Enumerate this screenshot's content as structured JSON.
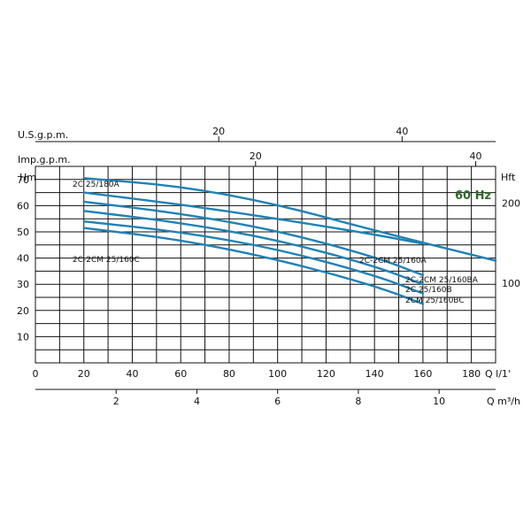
{
  "chart_data": {
    "type": "line",
    "frequency_label": "60 Hz",
    "primary_x_label": "Q  l/1'",
    "primary_y_label": "Hm",
    "secondary_y_label": "Hft",
    "xlim": [
      0,
      190
    ],
    "ylim": [
      0,
      75
    ],
    "x_ticks": [
      "0",
      "20",
      "40",
      "60",
      "80",
      "100",
      "120",
      "140",
      "160",
      "180"
    ],
    "y_ticks": [
      "10",
      "20",
      "30",
      "40",
      "50",
      "60",
      "70"
    ],
    "secondary_y_ticks": [
      "100",
      "200"
    ],
    "usgpm": {
      "label": "U.S.g.p.m.",
      "ticks": [
        "20",
        "40"
      ]
    },
    "impgpm": {
      "label": "Imp.g.p.m.",
      "ticks": [
        "20",
        "40"
      ]
    },
    "m3h": {
      "label": "Q  m³/h",
      "ticks": [
        "2",
        "4",
        "6",
        "8",
        "10"
      ]
    },
    "colors": {
      "curve": "#1f82b5",
      "frequency": "#2f6b2a",
      "grid": "#111111"
    },
    "series": [
      {
        "name": "2C 25/180A",
        "x": [
          20,
          60,
          100,
          140,
          190
        ],
        "y": [
          70.5,
          67.5,
          60.5,
          50.5,
          39
        ]
      },
      {
        "name": "2C-2CM 25/160A",
        "x": [
          20,
          60,
          100,
          140,
          160
        ],
        "y": [
          65,
          60.5,
          55,
          49,
          45.5
        ]
      },
      {
        "name": "2C-2CM 25/160BA",
        "x": [
          20,
          60,
          100,
          140,
          160
        ],
        "y": [
          61.5,
          57,
          50.5,
          40.5,
          33.5
        ]
      },
      {
        "name": "2C 25/160B",
        "x": [
          20,
          60,
          100,
          140,
          160
        ],
        "y": [
          58,
          53.5,
          47,
          37,
          30
        ]
      },
      {
        "name": "2CM 25/160BC",
        "x": [
          20,
          60,
          100,
          140,
          160
        ],
        "y": [
          54,
          50,
          43.5,
          33.5,
          26.5
        ]
      },
      {
        "name": "2C-2CM 25/160C",
        "x": [
          20,
          60,
          100,
          140,
          160
        ],
        "y": [
          51.5,
          47,
          39.5,
          29.5,
          22.5
        ]
      }
    ]
  }
}
